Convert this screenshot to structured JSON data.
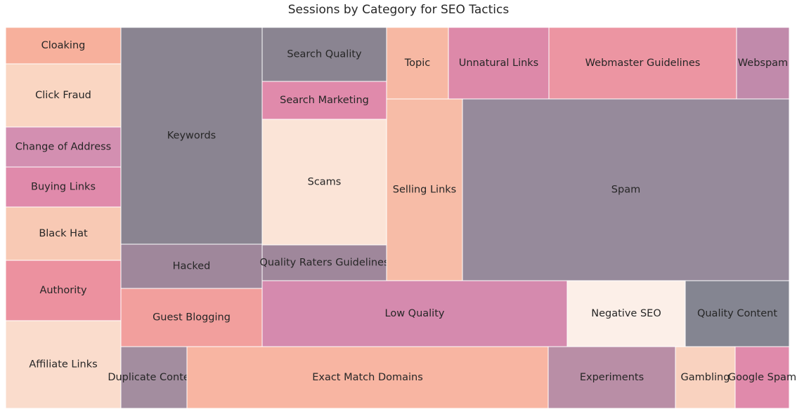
{
  "chart_data": {
    "type": "treemap",
    "title": "Sessions by Category for SEO Tactics",
    "items": [
      {
        "label": "Cloaking",
        "color": "#f7b09c"
      },
      {
        "label": "Click Fraud",
        "color": "#fad6c2"
      },
      {
        "label": "Change of Address",
        "color": "#d38fb1"
      },
      {
        "label": "Buying Links",
        "color": "#e08aab"
      },
      {
        "label": "Black Hat",
        "color": "#f8c9b4"
      },
      {
        "label": "Authority",
        "color": "#ec919f"
      },
      {
        "label": "Affiliate Links",
        "color": "#fadccc"
      },
      {
        "label": "Keywords",
        "color": "#8a8491"
      },
      {
        "label": "Hacked",
        "color": "#9f879b"
      },
      {
        "label": "Guest Blogging",
        "color": "#f29f9d"
      },
      {
        "label": "Search Quality",
        "color": "#8a8491"
      },
      {
        "label": "Search Marketing",
        "color": "#e08aab"
      },
      {
        "label": "Scams",
        "color": "#fbe4d7"
      },
      {
        "label": "Quality Raters Guidelines",
        "color": "#9f879b"
      },
      {
        "label": "Topic",
        "color": "#f7b8a3"
      },
      {
        "label": "Selling Links",
        "color": "#f7bca7"
      },
      {
        "label": "Unnatural Links",
        "color": "#dd89a9"
      },
      {
        "label": "Webmaster Guidelines",
        "color": "#ec95a2"
      },
      {
        "label": "Webspam",
        "color": "#c18aab"
      },
      {
        "label": "Spam",
        "color": "#968a9b"
      },
      {
        "label": "Low Quality",
        "color": "#d58aae"
      },
      {
        "label": "Negative SEO",
        "color": "#fcefe8"
      },
      {
        "label": "Quality Content",
        "color": "#848591"
      },
      {
        "label": "Duplicate Content",
        "color": "#a38d9f"
      },
      {
        "label": "Exact Match Domains",
        "color": "#f8b5a2"
      },
      {
        "label": "Experiments",
        "color": "#b98ea6"
      },
      {
        "label": "Gambling",
        "color": "#f9d2bf"
      },
      {
        "label": "Google Spam",
        "color": "#e08aab"
      }
    ]
  }
}
